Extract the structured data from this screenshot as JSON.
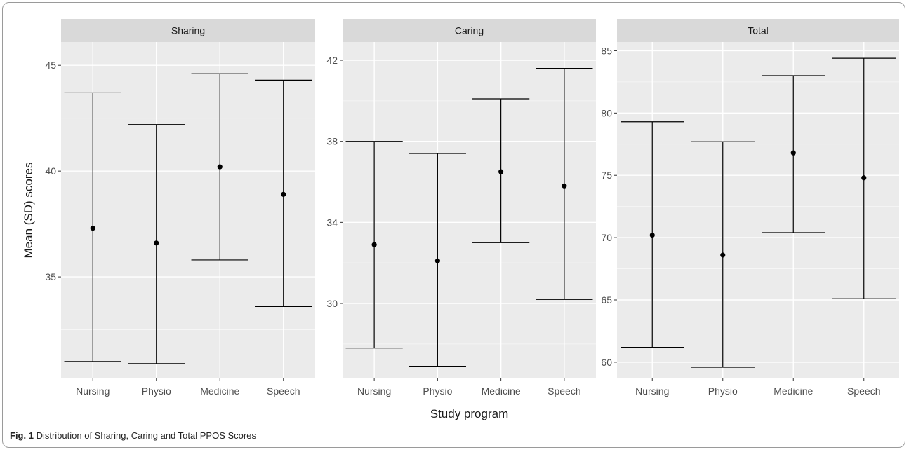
{
  "figure": {
    "caption_label": "Fig. 1",
    "caption_text": "Distribution of Sharing, Caring and Total PPOS Scores"
  },
  "chart_data": [
    {
      "type": "errorbar",
      "panel": "Sharing",
      "xlabel": "",
      "ylabel": "Mean (SD) scores",
      "categories": [
        "Nursing",
        "Physio",
        "Medicine",
        "Speech"
      ],
      "mean": [
        37.3,
        36.6,
        40.2,
        38.9
      ],
      "lower": [
        31.0,
        30.9,
        35.8,
        33.6
      ],
      "upper": [
        43.7,
        42.2,
        44.6,
        44.3
      ],
      "yticks": [
        35,
        40,
        45
      ],
      "ylim": [
        30.2,
        46.1
      ],
      "grid": true
    },
    {
      "type": "errorbar",
      "panel": "Caring",
      "xlabel": "Study program",
      "ylabel": "",
      "categories": [
        "Nursing",
        "Physio",
        "Medicine",
        "Speech"
      ],
      "mean": [
        32.9,
        32.1,
        36.5,
        35.8
      ],
      "lower": [
        27.8,
        26.9,
        33.0,
        30.2
      ],
      "upper": [
        38.0,
        37.4,
        40.1,
        41.6
      ],
      "yticks": [
        30,
        34,
        38,
        42
      ],
      "ylim": [
        26.3,
        42.9
      ],
      "grid": true
    },
    {
      "type": "errorbar",
      "panel": "Total",
      "xlabel": "",
      "ylabel": "",
      "categories": [
        "Nursing",
        "Physio",
        "Medicine",
        "Speech"
      ],
      "mean": [
        70.2,
        68.6,
        76.8,
        74.8
      ],
      "lower": [
        61.2,
        59.6,
        70.4,
        65.1
      ],
      "upper": [
        79.3,
        77.7,
        83.0,
        84.4
      ],
      "yticks": [
        60,
        65,
        70,
        75,
        80,
        85
      ],
      "ylim": [
        58.7,
        85.7
      ],
      "grid": true
    }
  ]
}
